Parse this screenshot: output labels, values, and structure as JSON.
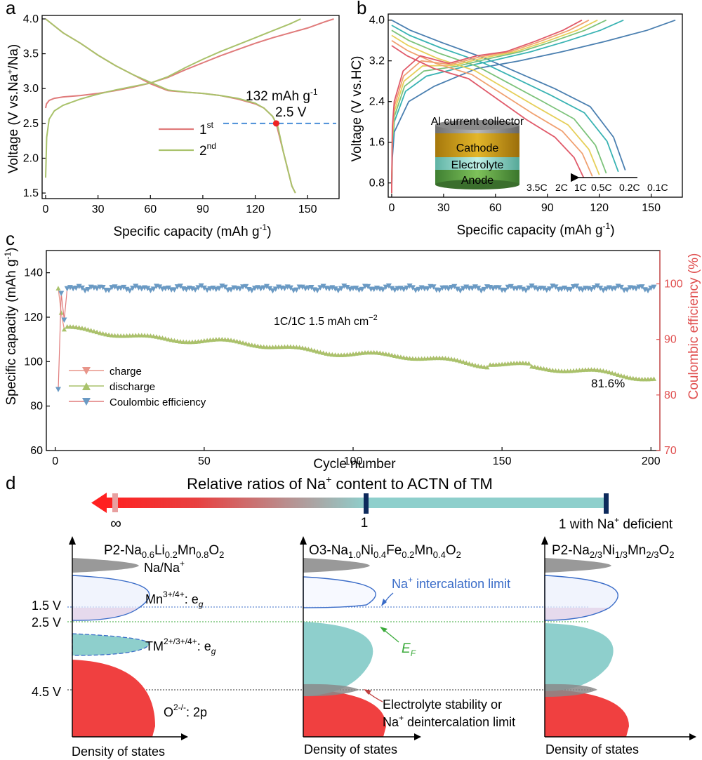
{
  "panels": {
    "a": "a",
    "b": "b",
    "c": "c",
    "d": "d"
  },
  "colors": {
    "cycle1": "#e07b7b",
    "cycle2": "#a9c26b",
    "marker": "#ee2222",
    "guide": "#4a8fd8",
    "rate_colors": [
      "#4a7fb0",
      "#39b3b3",
      "#7cc27a",
      "#e6cf5a",
      "#f0a070",
      "#e05a6a"
    ],
    "charge": "#e8958a",
    "discharge": "#a9c26b",
    "ce": "#6a9ac4",
    "ce_axis": "#e05050",
    "red_band": "#f04040",
    "teal_band": "#8ecfcc",
    "blue_line": "#3a6cc8",
    "green_line": "#3aaa3a",
    "purple_fill": "#d9a8c8",
    "grey": "#999999"
  },
  "chart_data": [
    {
      "id": "a",
      "type": "line",
      "xlabel": "Specific capacity (mAh g",
      "xlabel_sup": "-1",
      "xlabel_end": ")",
      "ylabel": "Voltage (V vs.Na",
      "ylabel_sup": "+",
      "ylabel_end": "/Na)",
      "xlim": [
        -2,
        168
      ],
      "ylim": [
        1.42,
        4.05
      ],
      "xticks": [
        0,
        30,
        60,
        90,
        120,
        150
      ],
      "yticks": [
        1.5,
        2.0,
        2.5,
        3.0,
        3.5,
        4.0
      ],
      "ytick_labels": [
        "1.5",
        "2.0",
        "2.5",
        "3.0",
        "3.5",
        "4.0"
      ],
      "series": [
        {
          "name": "1",
          "name_sup": "st",
          "charge": [
            [
              0,
              2.72
            ],
            [
              0.5,
              2.78
            ],
            [
              2,
              2.83
            ],
            [
              5,
              2.86
            ],
            [
              10,
              2.88
            ],
            [
              20,
              2.9
            ],
            [
              30,
              2.93
            ],
            [
              40,
              2.97
            ],
            [
              50,
              3.02
            ],
            [
              60,
              3.08
            ],
            [
              70,
              3.16
            ],
            [
              80,
              3.27
            ],
            [
              90,
              3.37
            ],
            [
              100,
              3.47
            ],
            [
              110,
              3.56
            ],
            [
              120,
              3.65
            ],
            [
              130,
              3.73
            ],
            [
              140,
              3.8
            ],
            [
              150,
              3.87
            ],
            [
              160,
              3.96
            ],
            [
              165,
              4.0
            ]
          ],
          "discharge": [
            [
              0,
              4.0
            ],
            [
              5,
              3.9
            ],
            [
              10,
              3.8
            ],
            [
              20,
              3.65
            ],
            [
              30,
              3.48
            ],
            [
              40,
              3.33
            ],
            [
              50,
              3.2
            ],
            [
              60,
              3.07
            ],
            [
              70,
              2.97
            ],
            [
              80,
              2.95
            ],
            [
              90,
              2.93
            ],
            [
              100,
              2.9
            ],
            [
              110,
              2.85
            ],
            [
              120,
              2.78
            ],
            [
              125,
              2.72
            ],
            [
              130,
              2.6
            ],
            [
              132,
              2.5
            ],
            [
              135,
              2.2
            ],
            [
              138,
              1.9
            ],
            [
              141,
              1.6
            ],
            [
              143,
              1.5
            ]
          ]
        },
        {
          "name": "2",
          "name_sup": "nd",
          "charge": [
            [
              0,
              1.72
            ],
            [
              0.6,
              2.3
            ],
            [
              2,
              2.56
            ],
            [
              5,
              2.68
            ],
            [
              10,
              2.76
            ],
            [
              20,
              2.85
            ],
            [
              30,
              2.92
            ],
            [
              40,
              2.98
            ],
            [
              50,
              3.03
            ],
            [
              60,
              3.08
            ],
            [
              70,
              3.17
            ],
            [
              80,
              3.3
            ],
            [
              90,
              3.42
            ],
            [
              100,
              3.53
            ],
            [
              110,
              3.63
            ],
            [
              120,
              3.73
            ],
            [
              130,
              3.83
            ],
            [
              140,
              3.93
            ],
            [
              146,
              4.0
            ]
          ],
          "discharge": [
            [
              0,
              4.0
            ],
            [
              5,
              3.9
            ],
            [
              10,
              3.8
            ],
            [
              20,
              3.65
            ],
            [
              30,
              3.48
            ],
            [
              40,
              3.33
            ],
            [
              50,
              3.2
            ],
            [
              60,
              3.09
            ],
            [
              70,
              2.98
            ],
            [
              80,
              2.95
            ],
            [
              90,
              2.93
            ],
            [
              100,
              2.9
            ],
            [
              110,
              2.86
            ],
            [
              120,
              2.79
            ],
            [
              125,
              2.72
            ],
            [
              130,
              2.6
            ],
            [
              133,
              2.45
            ],
            [
              136,
              2.1
            ],
            [
              139,
              1.8
            ],
            [
              141,
              1.6
            ],
            [
              143,
              1.5
            ]
          ]
        }
      ],
      "marker_point": [
        132,
        2.5
      ],
      "annotation_capacity": "132 mAh g",
      "annotation_capacity_sup": "-1",
      "annotation_voltage": "2.5 V"
    },
    {
      "id": "b",
      "type": "line",
      "xlabel": "Specific capacity (mAh g",
      "xlabel_sup": "-1",
      "xlabel_end": ")",
      "ylabel": "Voltage (V vs.HC)",
      "xlim": [
        -2,
        168
      ],
      "ylim": [
        0.52,
        4.12
      ],
      "xticks": [
        0,
        30,
        60,
        90,
        120,
        150
      ],
      "yticks": [
        0.8,
        1.6,
        2.4,
        3.2,
        4.0
      ],
      "ytick_labels": [
        "0.8",
        "1.6",
        "2.4",
        "3.2",
        "4.0"
      ],
      "rates": [
        {
          "name": "0.1C",
          "c0": 1.5,
          "cmax": 164,
          "dmax": 135
        },
        {
          "name": "0.2C",
          "c0": 1.7,
          "cmax": 134,
          "dmax": 131
        },
        {
          "name": "0.5C",
          "c0": 1.8,
          "cmax": 124,
          "dmax": 124
        },
        {
          "name": "1C",
          "c0": 1.9,
          "cmax": 119,
          "dmax": 120
        },
        {
          "name": "2C",
          "c0": 2.0,
          "cmax": 114,
          "dmax": 116
        },
        {
          "name": "3.5C",
          "c0": 2.1,
          "cmax": 110,
          "dmax": 111
        }
      ],
      "rate_labels": [
        "3.5C",
        "2C",
        "1C",
        "0.5C",
        "0.2C",
        "0.1C"
      ],
      "inset_labels": {
        "collector": "Al current collector",
        "cathode": "Cathode",
        "electrolyte": "Electrolyte",
        "anode": "Anode"
      }
    },
    {
      "id": "c",
      "type": "scatter",
      "xlabel": "Cycle number",
      "ylabel": "Specific capacity (mAh g",
      "ylabel_sup": "-1",
      "ylabel_end": ")",
      "y2label": "Coulombic efficiency (%)",
      "xlim": [
        -3,
        203
      ],
      "ylim": [
        60,
        150
      ],
      "y2lim": [
        70,
        106
      ],
      "xticks": [
        0,
        50,
        100,
        150,
        200
      ],
      "yticks": [
        60,
        80,
        100,
        120,
        140
      ],
      "y2ticks": [
        70,
        80,
        90,
        100
      ],
      "legend": [
        "charge",
        "discharge",
        "Coulombic efficiency"
      ],
      "legend_position": "bottom-left",
      "note": "1C/1C 1.5 mAh cm",
      "note_sup": "−2",
      "retention": "81.6%",
      "capacity_first": [
        [
          1,
          133
        ],
        [
          2,
          122
        ],
        [
          3,
          114.5
        ]
      ],
      "capacity_end": 92.8,
      "ce_first": [
        [
          1,
          81
        ],
        [
          2,
          98.3
        ],
        [
          3,
          93.5
        ]
      ],
      "ce_plateau": 99.2
    }
  ],
  "panel_d": {
    "title": "Relative ratios of Na",
    "title_sup": "+",
    "title_end": " content to ACTN of TM",
    "tick_labels": {
      "inf": "∞",
      "one": "1",
      "deficient": "1 with Na",
      "deficient_sup": "+",
      "deficient_end": " deficient"
    },
    "columns": [
      "P2-Na0.6Li0.2Mn0.8O2",
      "O3-Na1.0Ni0.4Fe0.2Mn0.4O2",
      "P2-Na2/3Ni1/3Mn2/3O2"
    ],
    "voltage_labels": [
      "1.5 V",
      "2.5 V",
      "4.5 V"
    ],
    "labels": {
      "na_ref": "Na/Na",
      "na_ref_sup": "+",
      "mn": "Mn",
      "mn_sup": "3+/4+",
      "eg": ": e",
      "eg_sub": "g",
      "tm": "TM",
      "tm_sup": "2+/3+/4+",
      "o": "O",
      "o_sup": "2-/-",
      "o_end": ": 2p",
      "intercalation": "Na",
      "intercalation_sup": "+",
      "intercalation_end": " intercalation limit",
      "ef": "E",
      "ef_sub": "F",
      "stability_1": "Electrolyte stability or",
      "stability_2": "Na",
      "stability_2_sup": "+",
      "stability_2_end": " deintercalation limit",
      "dos": "Density of states"
    }
  }
}
